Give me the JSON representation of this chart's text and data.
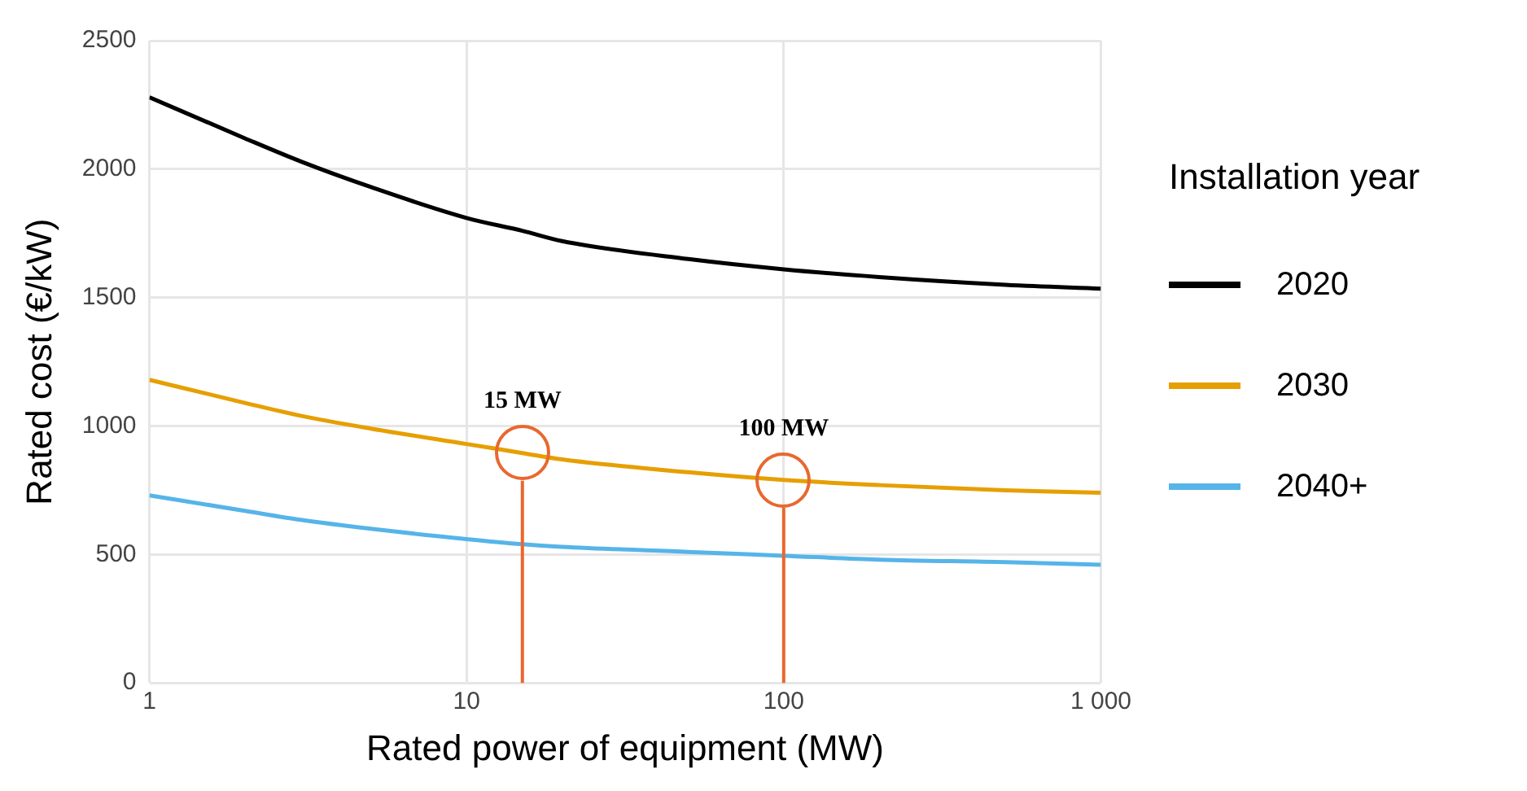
{
  "chart_data": {
    "type": "line",
    "xlabel": "Rated power of equipment (MW)",
    "ylabel": "Rated cost (€/kW)",
    "legend_title": "Installation year",
    "log": "x",
    "xlim": [
      1,
      1000
    ],
    "xticks": [
      1,
      10,
      100,
      {
        "value": 1000,
        "label": "1 000"
      }
    ],
    "ylim": [
      0,
      2500
    ],
    "yticks": [
      0,
      500,
      1000,
      1500,
      2000,
      2500
    ],
    "grid": true,
    "legend": "right",
    "marker": "none",
    "x": [
      1,
      2,
      3,
      5,
      10,
      15,
      20,
      50,
      100,
      200,
      500,
      1000
    ],
    "series": [
      {
        "name": "2020",
        "color": "#000000",
        "values": [
          2280,
          2120,
          2030,
          1930,
          1810,
          1760,
          1720,
          1650,
          1610,
          1580,
          1550,
          1535
        ]
      },
      {
        "name": "2030",
        "color": "#e69f00",
        "values": [
          1180,
          1090,
          1040,
          990,
          930,
          895,
          870,
          820,
          790,
          770,
          750,
          740
        ]
      },
      {
        "name": "2040+",
        "color": "#56b4e9",
        "values": [
          730,
          670,
          635,
          600,
          560,
          540,
          530,
          510,
          495,
          480,
          470,
          460
        ]
      }
    ],
    "ref_lines": [
      {
        "axis": "x",
        "value": 15,
        "color": "#e8682f"
      },
      {
        "axis": "x",
        "value": 100,
        "color": "#e8682f"
      }
    ],
    "annotations": [
      {
        "text": "15 MW",
        "x": 15,
        "y": 895
      },
      {
        "text": "100 MW",
        "x": 100,
        "y": 790
      }
    ]
  }
}
